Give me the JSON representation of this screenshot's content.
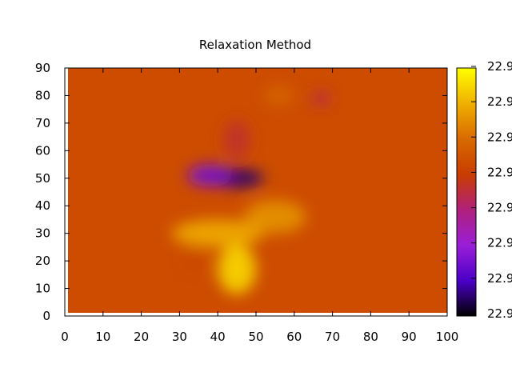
{
  "chart_data": {
    "type": "heatmap",
    "title": "Relaxation Method",
    "xlabel": "",
    "ylabel": "",
    "xlim": [
      0,
      100
    ],
    "ylim": [
      0,
      90
    ],
    "x_ticks": [
      "0",
      "10",
      "20",
      "30",
      "40",
      "50",
      "60",
      "70",
      "80",
      "90",
      "100"
    ],
    "y_ticks": [
      "0",
      "10",
      "20",
      "30",
      "40",
      "50",
      "60",
      "70",
      "80",
      "90"
    ],
    "colorbar_ticks": [
      "22.9",
      "22.9",
      "22.9",
      "22.9",
      "22.9",
      "22.9",
      "22.9",
      "22.9"
    ],
    "colormap": [
      "#000000",
      "#4b00c8",
      "#9a1ed8",
      "#b0207a",
      "#c83c00",
      "#d86a00",
      "#f0b000",
      "#ffff00"
    ],
    "background_value": 0.62,
    "features": [
      {
        "x": 45,
        "y": 50,
        "sx": 7,
        "sy": 3.5,
        "value": 0.08
      },
      {
        "x": 38,
        "y": 51,
        "sx": 6,
        "sy": 4,
        "value": 0.22
      },
      {
        "x": 45,
        "y": 64,
        "sx": 3.5,
        "sy": 7,
        "value": 0.52
      },
      {
        "x": 67,
        "y": 79,
        "sx": 2.5,
        "sy": 2.5,
        "value": 0.48
      },
      {
        "x": 56,
        "y": 80,
        "sx": 4,
        "sy": 3.5,
        "value": 0.7
      },
      {
        "x": 45,
        "y": 17,
        "sx": 5,
        "sy": 9,
        "value": 0.93
      },
      {
        "x": 40,
        "y": 30,
        "sx": 12,
        "sy": 5,
        "value": 0.85
      },
      {
        "x": 55,
        "y": 36,
        "sx": 8,
        "sy": 6,
        "value": 0.8
      },
      {
        "x": 34,
        "y": 20,
        "sx": 3,
        "sy": 3,
        "value": 0.6
      }
    ],
    "grid": false,
    "legend": "none",
    "colorbar": "right"
  }
}
